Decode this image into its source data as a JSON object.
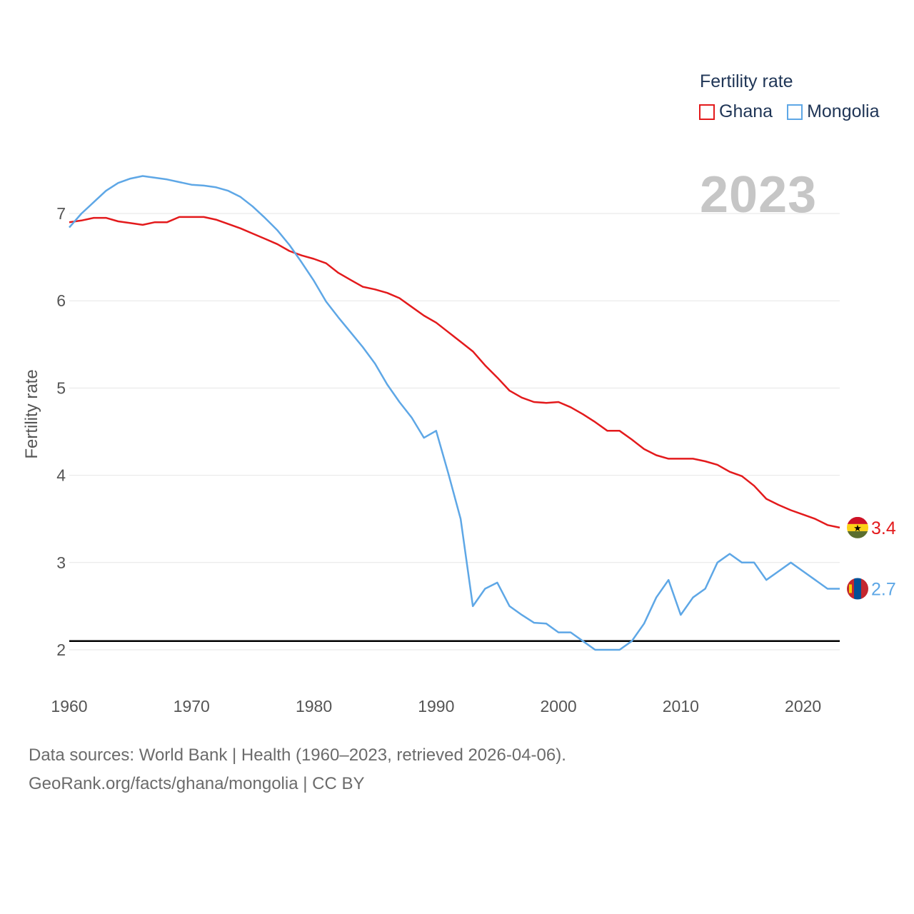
{
  "legend": {
    "title": "Fertility rate",
    "items": [
      {
        "name": "Ghana",
        "color": "#e31a1c"
      },
      {
        "name": "Mongolia",
        "color": "#5ea7e6"
      }
    ]
  },
  "year_label": "2023",
  "footer": {
    "line1": "Data sources: World Bank | Health (1960–2023, retrieved 2026-04-06).",
    "line2": "GeoRank.org/facts/ghana/mongolia | CC BY"
  },
  "chart_data": {
    "type": "line",
    "ylabel": "Fertility rate",
    "xlabel": "",
    "xlim": [
      1960,
      2023
    ],
    "ylim": [
      1.5,
      7.5
    ],
    "yticks": [
      2,
      3,
      4,
      5,
      6,
      7
    ],
    "xticks": [
      1960,
      1970,
      1980,
      1990,
      2000,
      2010,
      2020
    ],
    "reference_line": 2.1,
    "x": [
      1960,
      1961,
      1962,
      1963,
      1964,
      1965,
      1966,
      1967,
      1968,
      1969,
      1970,
      1971,
      1972,
      1973,
      1974,
      1975,
      1976,
      1977,
      1978,
      1979,
      1980,
      1981,
      1982,
      1983,
      1984,
      1985,
      1986,
      1987,
      1988,
      1989,
      1990,
      1991,
      1992,
      1993,
      1994,
      1995,
      1996,
      1997,
      1998,
      1999,
      2000,
      2001,
      2002,
      2003,
      2004,
      2005,
      2006,
      2007,
      2008,
      2009,
      2010,
      2011,
      2012,
      2013,
      2014,
      2015,
      2016,
      2017,
      2018,
      2019,
      2020,
      2021,
      2022,
      2023
    ],
    "series": [
      {
        "name": "Ghana",
        "color": "#e31a1c",
        "end_label": "3.4",
        "values": [
          6.9,
          6.92,
          6.95,
          6.95,
          6.91,
          6.89,
          6.87,
          6.9,
          6.9,
          6.96,
          6.96,
          6.96,
          6.93,
          6.88,
          6.83,
          6.77,
          6.71,
          6.65,
          6.57,
          6.52,
          6.48,
          6.43,
          6.32,
          6.24,
          6.16,
          6.13,
          6.09,
          6.03,
          5.93,
          5.83,
          5.75,
          5.64,
          5.53,
          5.42,
          5.26,
          5.12,
          4.97,
          4.89,
          4.84,
          4.83,
          4.84,
          4.78,
          4.7,
          4.61,
          4.51,
          4.51,
          4.41,
          4.3,
          4.23,
          4.19,
          4.19,
          4.19,
          4.16,
          4.12,
          4.04,
          3.99,
          3.88,
          3.73,
          3.66,
          3.6,
          3.55,
          3.5,
          3.43,
          3.4
        ]
      },
      {
        "name": "Mongolia",
        "color": "#5ea7e6",
        "end_label": "2.7",
        "values": [
          6.84,
          7.0,
          7.13,
          7.26,
          7.35,
          7.4,
          7.43,
          7.41,
          7.39,
          7.36,
          7.33,
          7.32,
          7.3,
          7.26,
          7.19,
          7.08,
          6.95,
          6.81,
          6.64,
          6.44,
          6.23,
          5.99,
          5.81,
          5.64,
          5.47,
          5.28,
          5.04,
          4.84,
          4.66,
          4.43,
          4.51,
          4.02,
          3.5,
          2.5,
          2.7,
          2.77,
          2.5,
          2.4,
          2.31,
          2.3,
          2.2,
          2.2,
          2.1,
          2.0,
          2.0,
          2.0,
          2.1,
          2.3,
          2.6,
          2.8,
          2.4,
          2.6,
          2.7,
          3.0,
          3.1,
          3.0,
          3.0,
          2.8,
          2.9,
          3.0,
          2.9,
          2.8,
          2.7,
          2.7
        ]
      }
    ]
  }
}
